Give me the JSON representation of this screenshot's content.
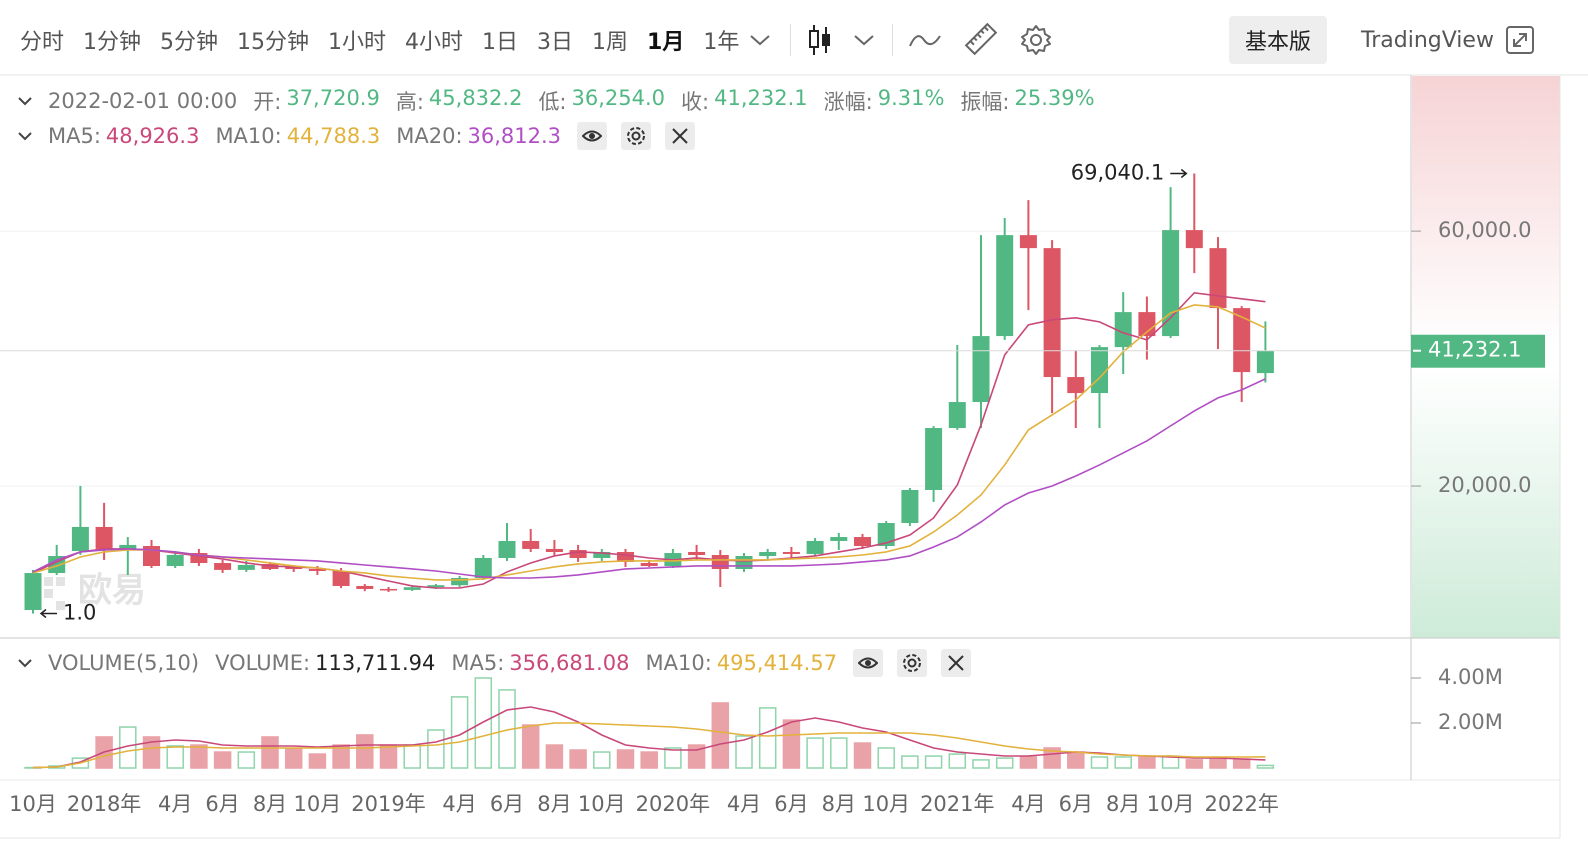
{
  "toolbar": {
    "intervals": [
      "分时",
      "1分钟",
      "5分钟",
      "15分钟",
      "1小时",
      "4小时",
      "1日",
      "3日",
      "1周",
      "1月",
      "1年"
    ],
    "selected_interval": "1月",
    "views": [
      "基本版",
      "TradingView"
    ],
    "selected_view": "基本版"
  },
  "legend": {
    "date": "2022-02-01 00:00",
    "ohlc": [
      {
        "label": "开:",
        "value": "37,720.9"
      },
      {
        "label": "高:",
        "value": "45,832.2"
      },
      {
        "label": "低:",
        "value": "36,254.0"
      },
      {
        "label": "收:",
        "value": "41,232.1"
      },
      {
        "label": "涨幅:",
        "value": "9.31%"
      },
      {
        "label": "振幅:",
        "value": "25.39%"
      }
    ]
  },
  "volume_legend": {
    "title": "VOLUME(5,10)",
    "label": "VOLUME:",
    "value": "113,711.94"
  },
  "watermark": "欧易",
  "chart_data": [
    {
      "type": "candlestick",
      "up_color": "#52b883",
      "down_color": "#dd5663",
      "grid": true,
      "open": [
        550,
        6350,
        9800,
        13580,
        10130,
        10590,
        7450,
        9490,
        7920,
        6840,
        7770,
        7300,
        6980,
        6670,
        4320,
        3850,
        3700,
        4120,
        4440,
        5570,
        8710,
        11380,
        10130,
        9960,
        8710,
        9650,
        7920,
        7450,
        9650,
        9180,
        6980,
        9020,
        9650,
        9340,
        11380,
        12000,
        10590,
        14200,
        19380,
        29100,
        33180,
        43530,
        59370,
        57330,
        37100,
        34590,
        41800,
        47290,
        43530,
        60160,
        57330,
        47920,
        37720.9
      ],
      "high": [
        6830,
        10760,
        20000,
        17360,
        12000,
        11540,
        9650,
        10130,
        8400,
        8240,
        8090,
        7610,
        7460,
        7140,
        4630,
        4160,
        4470,
        4630,
        5890,
        9180,
        14200,
        13260,
        11540,
        10760,
        10130,
        10130,
        8400,
        10130,
        10760,
        9960,
        9490,
        10130,
        10440,
        11850,
        12630,
        12480,
        14510,
        19690,
        29410,
        42120,
        59370,
        62050,
        64860,
        58590,
        41330,
        42120,
        50430,
        49740,
        66900,
        69040.1,
        59060,
        48230,
        45832.2
      ],
      "low": [
        1.0,
        6040,
        9200,
        8400,
        6040,
        7140,
        7140,
        7450,
        6360,
        6520,
        6830,
        6520,
        6050,
        3980,
        3500,
        3380,
        3530,
        3850,
        4160,
        5260,
        8240,
        9650,
        9020,
        8090,
        8240,
        7300,
        7300,
        7140,
        8400,
        4160,
        6520,
        8560,
        8560,
        9020,
        9960,
        10130,
        10130,
        13730,
        17520,
        28810,
        29100,
        42940,
        47600,
        31450,
        29100,
        29100,
        37570,
        39840,
        43220,
        53410,
        41490,
        33180,
        36254.0
      ],
      "close": [
        6350,
        9020,
        13580,
        10130,
        10760,
        7450,
        9180,
        7920,
        6840,
        7610,
        6980,
        6980,
        6670,
        4320,
        3850,
        3700,
        4120,
        4440,
        5570,
        8710,
        11380,
        10130,
        9650,
        8710,
        9650,
        8080,
        7450,
        9490,
        9180,
        6980,
        9020,
        9650,
        9340,
        11380,
        12000,
        10590,
        14200,
        19380,
        29100,
        33180,
        43530,
        59370,
        57330,
        37100,
        34590,
        41800,
        47290,
        43530,
        60160,
        57330,
        47920,
        37880,
        41232.1
      ],
      "ylim": [
        -3844,
        84494
      ],
      "yticks": [
        {
          "value": 60000,
          "label": "60,000.0"
        },
        {
          "value": 20000,
          "label": "20,000.0"
        }
      ],
      "max_label": "69,040.1",
      "min_label": "1.0",
      "last_label": "41,232.1",
      "series": [
        {
          "name": "MA5:",
          "legend_value": "48,926.3",
          "color": "#c9487a",
          "values": [
            6360,
            8090,
            9660,
            10130,
            10130,
            9970,
            9500,
            9030,
            8560,
            7930,
            7460,
            7300,
            7140,
            6670,
            5890,
            5100,
            4320,
            4000,
            4000,
            4630,
            6520,
            7930,
            9030,
            9660,
            9500,
            9180,
            8710,
            8400,
            8710,
            8400,
            8240,
            8400,
            8710,
            9030,
            9660,
            10280,
            11070,
            12320,
            14990,
            20170,
            29590,
            40580,
            45290,
            46080,
            46390,
            45760,
            44040,
            42940,
            46390,
            50310,
            49840,
            49370,
            48926.3
          ]
        },
        {
          "name": "MA10:",
          "legend_value": "44,788.3",
          "color": "#e2b23c",
          "values": [
            6360,
            7460,
            8870,
            9660,
            9970,
            9970,
            9660,
            9180,
            8870,
            8400,
            7930,
            7460,
            7140,
            6670,
            6360,
            5890,
            5570,
            5260,
            5260,
            5420,
            6050,
            6670,
            7300,
            7770,
            8090,
            8240,
            8240,
            8240,
            8400,
            8400,
            8400,
            8400,
            8560,
            8710,
            8870,
            9180,
            9660,
            10600,
            12790,
            15460,
            18600,
            23310,
            28810,
            31160,
            33520,
            36970,
            41050,
            44180,
            47160,
            48410,
            48100,
            46530,
            44788.3
          ]
        },
        {
          "name": "MA20:",
          "legend_value": "36,812.3",
          "color": "#b04fc4",
          "values": [
            6520,
            8400,
            9660,
            9970,
            10130,
            9970,
            9660,
            9180,
            8870,
            8710,
            8560,
            8400,
            8240,
            7930,
            7610,
            7300,
            6990,
            6670,
            6200,
            5730,
            5570,
            5570,
            5730,
            6050,
            6520,
            6990,
            7140,
            7300,
            7460,
            7460,
            7460,
            7460,
            7460,
            7610,
            7770,
            8090,
            8400,
            9030,
            10440,
            12010,
            14360,
            17030,
            18910,
            20010,
            21580,
            23310,
            25190,
            27080,
            29440,
            31790,
            33830,
            35090,
            36812.3
          ]
        }
      ]
    },
    {
      "type": "bar",
      "up_color": "#8fd4aa",
      "down_color": "#e9a2a7",
      "categories": [
        "10月",
        null,
        null,
        "2018年",
        null,
        null,
        "4月",
        null,
        "6月",
        null,
        "8月",
        null,
        "10月",
        null,
        null,
        "2019年",
        null,
        null,
        "4月",
        null,
        "6月",
        null,
        "8月",
        null,
        "10月",
        null,
        null,
        "2020年",
        null,
        null,
        "4月",
        null,
        "6月",
        null,
        "8月",
        null,
        "10月",
        null,
        null,
        "2021年",
        null,
        null,
        "4月",
        null,
        "6月",
        null,
        "8月",
        null,
        "10月",
        null,
        null,
        "2022年",
        null
      ],
      "values": [
        20000,
        90000,
        440000,
        1380000,
        1820000,
        1380000,
        980000,
        1020000,
        710000,
        710000,
        1380000,
        840000,
        620000,
        1020000,
        1470000,
        1020000,
        1020000,
        1690000,
        3160000,
        4000000,
        3470000,
        1910000,
        1020000,
        800000,
        710000,
        800000,
        710000,
        890000,
        1020000,
        2890000,
        1420000,
        2670000,
        2130000,
        1330000,
        1330000,
        1110000,
        890000,
        530000,
        530000,
        620000,
        360000,
        440000,
        490000,
        890000,
        710000,
        490000,
        490000,
        530000,
        530000,
        360000,
        400000,
        400000,
        113711.94
      ],
      "ylim": [
        -533333,
        5688889
      ],
      "yticks": [
        {
          "value": 4000000,
          "label": "4.00M"
        },
        {
          "value": 2000000,
          "label": "2.00M"
        }
      ],
      "series": [
        {
          "name": "MA5:",
          "legend_value": "356,681.08",
          "color": "#c9487a",
          "values": [
            20000,
            44000,
            267000,
            711000,
            978000,
            1156000,
            1244000,
            1200000,
            1022000,
            978000,
            978000,
            978000,
            933000,
            978000,
            1022000,
            1022000,
            1022000,
            1156000,
            1467000,
            2044000,
            2578000,
            2711000,
            2489000,
            2044000,
            1467000,
            1022000,
            889000,
            800000,
            800000,
            1067000,
            1244000,
            1600000,
            2044000,
            2222000,
            2044000,
            1778000,
            1600000,
            1244000,
            889000,
            711000,
            622000,
            533000,
            533000,
            622000,
            711000,
            667000,
            578000,
            533000,
            489000,
            444000,
            444000,
            400000,
            356681.08
          ]
        },
        {
          "name": "MA10:",
          "legend_value": "495,414.57",
          "color": "#e2b23c",
          "values": [
            20000,
            44000,
            222000,
            533000,
            756000,
            889000,
            933000,
            933000,
            889000,
            889000,
            889000,
            889000,
            889000,
            889000,
            889000,
            933000,
            978000,
            1022000,
            1156000,
            1422000,
            1689000,
            1867000,
            2000000,
            2000000,
            1956000,
            1911000,
            1867000,
            1822000,
            1733000,
            1600000,
            1467000,
            1422000,
            1467000,
            1511000,
            1556000,
            1556000,
            1556000,
            1556000,
            1467000,
            1333000,
            1156000,
            978000,
            844000,
            756000,
            711000,
            622000,
            578000,
            533000,
            533000,
            489000,
            489000,
            489000,
            495414.57
          ]
        }
      ]
    }
  ]
}
